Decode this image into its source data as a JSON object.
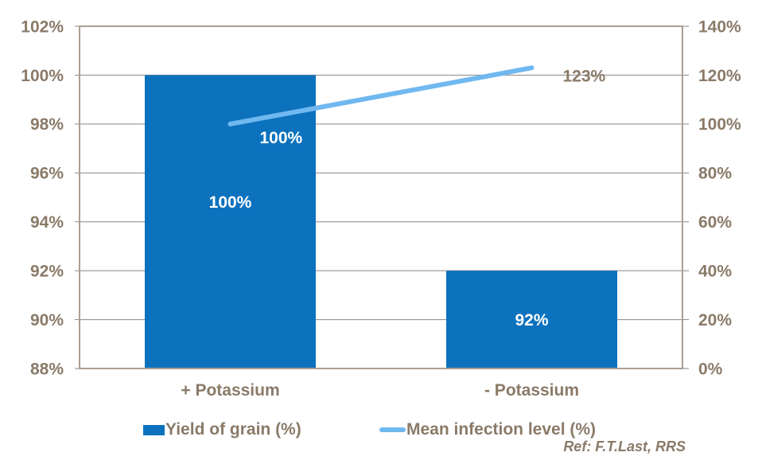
{
  "chart_data": {
    "type": "bar",
    "subtype": "combo-bar-line",
    "title": "",
    "categories": [
      "+ Potassium",
      "- Potassium"
    ],
    "series": [
      {
        "name": "Yield of grain (%)",
        "kind": "bar",
        "axis": "left",
        "values": [
          100,
          92
        ],
        "data_labels": [
          "100%",
          "92%"
        ]
      },
      {
        "name": "Mean infection level (%)",
        "kind": "line",
        "axis": "right",
        "values": [
          100,
          123
        ],
        "data_labels": [
          "100%",
          "123%"
        ]
      }
    ],
    "left_axis": {
      "min": 88,
      "max": 102,
      "step": 2,
      "tick_labels": [
        "88%",
        "90%",
        "92%",
        "94%",
        "96%",
        "98%",
        "100%",
        "102%"
      ]
    },
    "right_axis": {
      "min": 0,
      "max": 140,
      "step": 20,
      "tick_labels": [
        "0%",
        "20%",
        "40%",
        "60%",
        "80%",
        "100%",
        "120%",
        "140%"
      ]
    },
    "grid": true,
    "legend_position": "bottom",
    "annotation": "Ref: F.T.Last, RRS"
  },
  "colors": {
    "bar": "#0d72bd",
    "line": "#70b8f0",
    "axis_text": "#8a7a68",
    "frame": "#a99f93",
    "gridline": "#878787",
    "bar_label": "#ffffff",
    "line_label_on_bar": "#ffffff",
    "line_label_outside": "#8a7a68",
    "background": "#ffffff"
  }
}
